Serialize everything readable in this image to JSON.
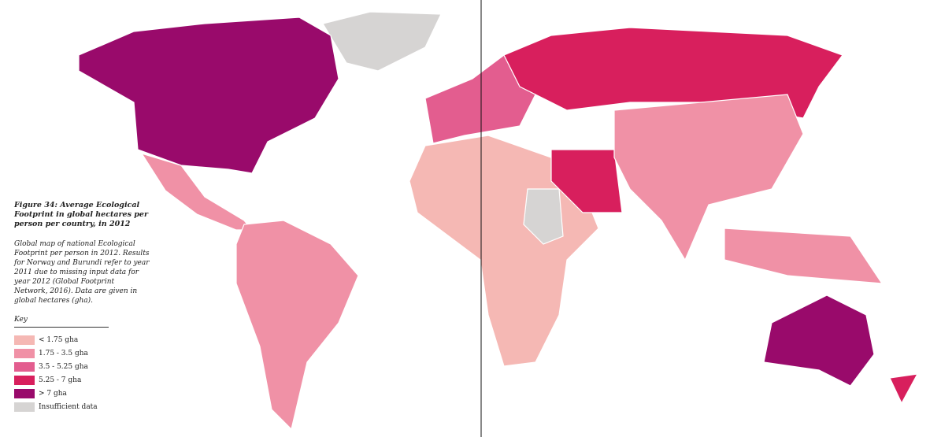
{
  "figure": {
    "title": "Figure 34: Average Ecological Footprint in global hectares per person per country, in 2012",
    "caption": "Global map of national Ecological Footprint per person in 2012. Results for Norway and Burundi refer to year 2011 due to missing input data for year 2012 (Global Footprint Network, 2016). Data are given in global hectares (gha)."
  },
  "legend": {
    "title": "Key",
    "items": [
      {
        "label": "< 1.75 gha",
        "color": "#f5b8b4"
      },
      {
        "label": "1.75 - 3.5 gha",
        "color": "#f091a6"
      },
      {
        "label": "3.5 - 5.25 gha",
        "color": "#e35d8f"
      },
      {
        "label": "5.25 - 7 gha",
        "color": "#d81f5d"
      },
      {
        "label": "> 7 gha",
        "color": "#990a6b"
      },
      {
        "label": "Insufficient data",
        "color": "#d6d4d3"
      }
    ]
  }
}
